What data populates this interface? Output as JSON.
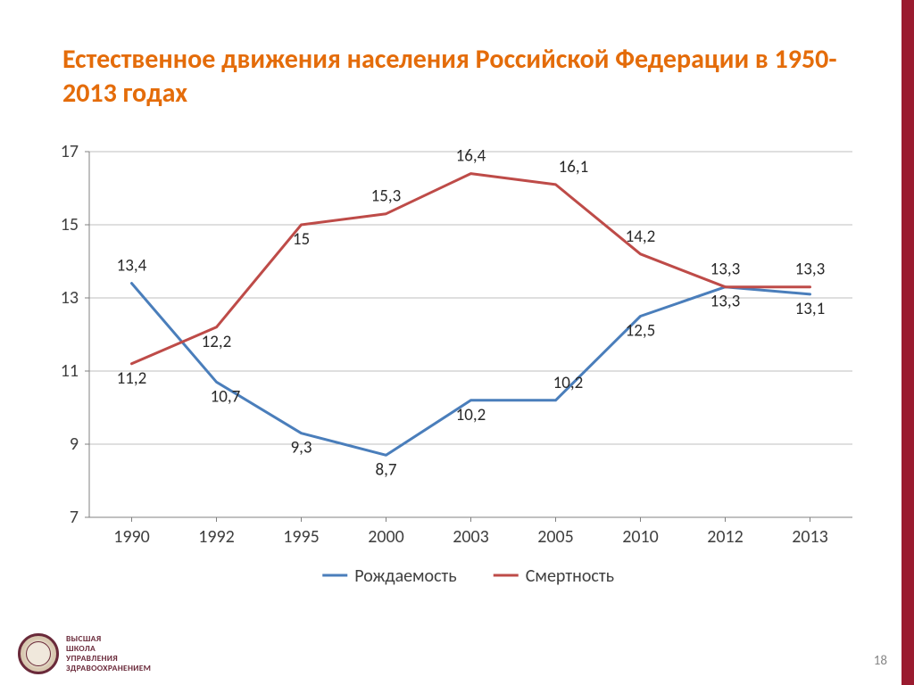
{
  "title": "Естественное движения населения Российской Федерации в 1950-2013 годах",
  "page_number": "18",
  "footer": {
    "line1": "ВЫСШАЯ",
    "line2": "ШКОЛА",
    "line3": "УПРАВЛЕНИЯ",
    "line4": "ЗДРАВООХРАНЕНИЕМ"
  },
  "chart": {
    "type": "line",
    "background_color": "#ffffff",
    "grid_color": "#bfbfbf",
    "axis_color": "#808080",
    "tick_fontsize": 20,
    "tick_color": "#404040",
    "datalabel_fontsize": 19,
    "datalabel_color": "#2a2a2a",
    "line_width": 3,
    "ylim": [
      7,
      17
    ],
    "ytick_step": 2,
    "yticks": [
      7,
      9,
      11,
      13,
      15,
      17
    ],
    "categories": [
      "1990",
      "1992",
      "1995",
      "2000",
      "2003",
      "2005",
      "2010",
      "2012",
      "2013"
    ],
    "series": [
      {
        "name": "Рождаемость",
        "color": "#4a7ebb",
        "values": [
          13.4,
          10.7,
          9.3,
          8.7,
          10.2,
          10.2,
          12.5,
          13.3,
          13.1
        ],
        "labels": [
          "13,4",
          "10,7",
          "9,3",
          "8,7",
          "10,2",
          "10,2",
          "12,5",
          "13,3",
          "13,1"
        ],
        "label_dy": [
          -14,
          22,
          22,
          22,
          22,
          -14,
          22,
          22,
          22
        ],
        "label_dx": [
          0,
          10,
          0,
          0,
          0,
          14,
          0,
          0,
          0
        ]
      },
      {
        "name": "Смертность",
        "color": "#be4b48",
        "values": [
          11.2,
          12.2,
          15.0,
          15.3,
          16.4,
          16.1,
          14.2,
          13.3,
          13.3
        ],
        "labels": [
          "11,2",
          "12,2",
          "15",
          "15,3",
          "16,4",
          "16,1",
          "14,2",
          "13,3",
          "13,3"
        ],
        "label_dy": [
          22,
          22,
          22,
          -14,
          -14,
          -14,
          -14,
          -14,
          -14
        ],
        "label_dx": [
          0,
          0,
          0,
          0,
          0,
          20,
          0,
          0,
          0
        ]
      }
    ],
    "legend": {
      "swatch_width": 28,
      "swatch_height": 3,
      "fontsize": 20,
      "text_color": "#404040"
    }
  }
}
